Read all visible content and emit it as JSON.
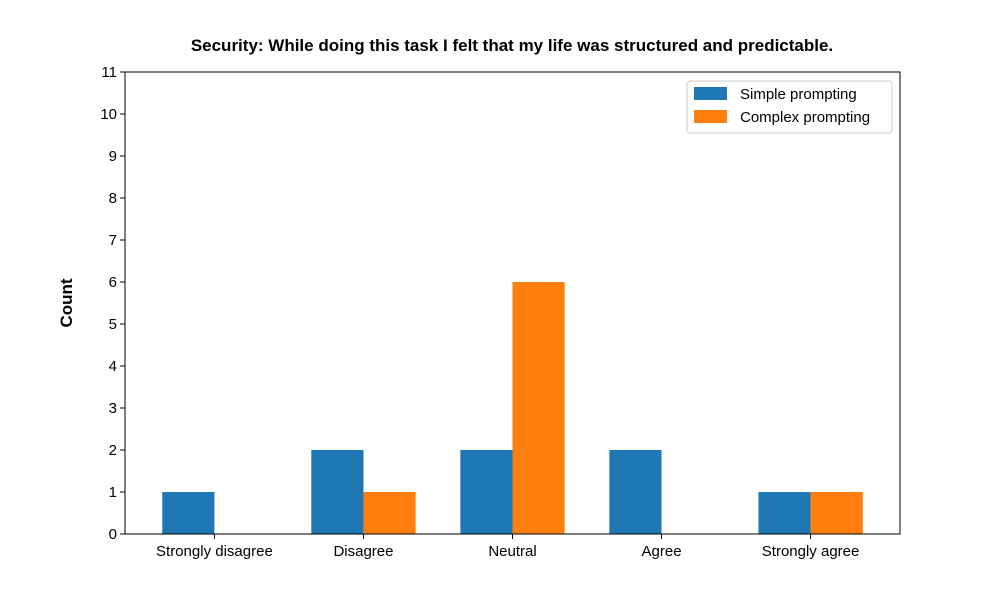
{
  "chart_data": {
    "type": "bar",
    "title": "Security: While doing this task I felt that my life was structured and predictable.",
    "xlabel": "",
    "ylabel": "Count",
    "categories": [
      "Strongly disagree",
      "Disagree",
      "Neutral",
      "Agree",
      "Strongly agree"
    ],
    "series": [
      {
        "name": "Simple prompting",
        "values": [
          1,
          2,
          2,
          2,
          1
        ],
        "color": "#1f77b4"
      },
      {
        "name": "Complex prompting",
        "values": [
          0,
          1,
          6,
          0,
          1
        ],
        "color": "#ff7f0e"
      }
    ],
    "ylim": [
      0,
      11
    ],
    "yticks": [
      0,
      1,
      2,
      3,
      4,
      5,
      6,
      7,
      8,
      9,
      10,
      11
    ],
    "grid": false,
    "legend_position": "top-right"
  }
}
